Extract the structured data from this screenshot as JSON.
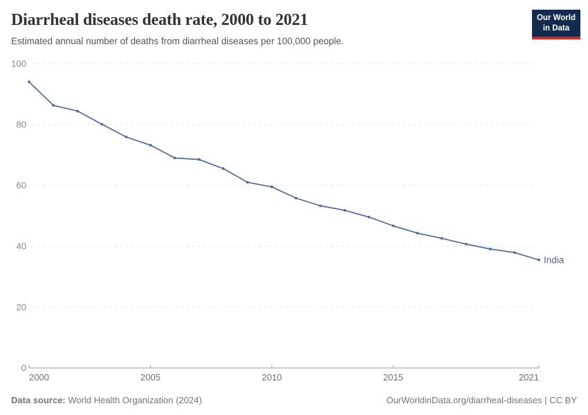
{
  "header": {
    "title": "Diarrheal diseases death rate, 2000 to 2021",
    "subtitle": "Estimated annual number of deaths from diarrheal diseases per 100,000 people.",
    "logo": {
      "line1": "Our World",
      "line2": "in Data",
      "bg_color": "#122b4e",
      "accent_color": "#d42b21"
    }
  },
  "chart_data": {
    "type": "line",
    "title": "Diarrheal diseases death rate, 2000 to 2021",
    "subtitle": "Estimated annual number of deaths from diarrheal diseases per 100,000 people.",
    "x": [
      2000,
      2001,
      2002,
      2003,
      2004,
      2005,
      2006,
      2007,
      2008,
      2009,
      2010,
      2011,
      2012,
      2013,
      2014,
      2015,
      2016,
      2017,
      2018,
      2019,
      2020,
      2021
    ],
    "series": [
      {
        "name": "India",
        "values": [
          94.0,
          86.3,
          84.4,
          80.1,
          75.9,
          73.2,
          69.0,
          68.5,
          65.5,
          61.0,
          59.5,
          55.8,
          53.3,
          51.8,
          49.6,
          46.7,
          44.3,
          42.6,
          40.7,
          39.1,
          37.9,
          35.5
        ],
        "color": "#4C6A9C"
      }
    ],
    "xlabel": "",
    "ylabel": "",
    "xlim": [
      2000,
      2021
    ],
    "ylim": [
      0,
      100
    ],
    "yticks": [
      0,
      20,
      40,
      60,
      80,
      100
    ],
    "xticks": [
      2000,
      2005,
      2010,
      2015,
      2021
    ],
    "grid": "horizontal-dashed",
    "legend_position": "end-of-line-label",
    "end_label": "India",
    "colors": {
      "line": "#4C6A9C",
      "grid": "#e2e2e2",
      "axis": "#9a9a9a",
      "y_tick_label": "#8a8a8a",
      "x_tick_label": "#6f6f6f"
    }
  },
  "footer": {
    "datasource_label": "Data source:",
    "datasource": "World Health Organization (2024)",
    "attribution": "OurWorldinData.org/diarrheal-diseases | CC BY"
  }
}
